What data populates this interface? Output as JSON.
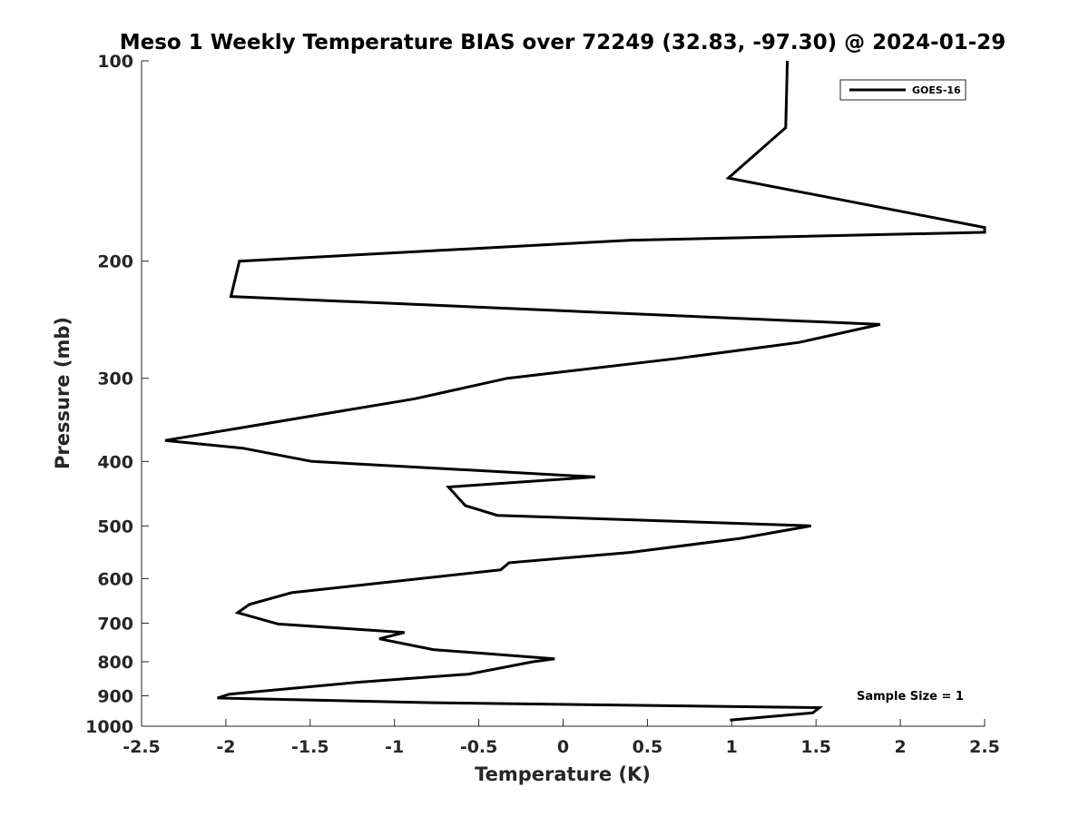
{
  "chart_data": {
    "type": "line",
    "title": "Meso 1 Weekly Temperature BIAS over 72249 (32.83, -97.30) @ 2024-01-29",
    "xlabel": "Temperature (K)",
    "ylabel": "Pressure (mb)",
    "xlim": [
      -2.5,
      2.5
    ],
    "ylim": [
      100,
      1000
    ],
    "y_scale": "log",
    "y_reversed": true,
    "x_ticks": [
      -2.5,
      -2,
      -1.5,
      -1,
      -0.5,
      0,
      0.5,
      1,
      1.5,
      2,
      2.5
    ],
    "x_tick_labels": [
      "-2.5",
      "-2",
      "-1.5",
      "-1",
      "-0.5",
      "0",
      "0.5",
      "1",
      "1.5",
      "2",
      "2.5"
    ],
    "y_ticks": [
      100,
      200,
      300,
      400,
      500,
      600,
      700,
      800,
      900,
      1000
    ],
    "y_tick_labels": [
      "100",
      "200",
      "300",
      "400",
      "500",
      "600",
      "700",
      "800",
      "900",
      "1000"
    ],
    "grid": false,
    "legend_position": "top-right",
    "annotation": "Sample Size = 1",
    "series": [
      {
        "name": "GOES-16",
        "color": "#000000",
        "x": [
          1.33,
          1.32,
          0.98,
          2.5,
          2.5,
          0.4,
          -1.92,
          -1.97,
          1.88,
          1.4,
          0.68,
          -0.33,
          -0.88,
          -2.36,
          -1.9,
          -1.49,
          0.19,
          -0.68,
          -0.58,
          -0.39,
          1.47,
          1.05,
          0.4,
          -0.32,
          -0.37,
          -1.61,
          -1.86,
          -1.93,
          -1.69,
          -0.94,
          -1.09,
          -0.77,
          -0.05,
          -0.18,
          -0.56,
          -1.22,
          -1.98,
          -2.05,
          -0.77,
          1.52,
          1.48,
          0.99
        ],
        "y": [
          100,
          126,
          150,
          178,
          181,
          186,
          200,
          226,
          249,
          265,
          280,
          300,
          322,
          372,
          382,
          400,
          422,
          437,
          466,
          482,
          500,
          522,
          548,
          568,
          582,
          630,
          656,
          675,
          702,
          723,
          739,
          767,
          792,
          800,
          835,
          859,
          895,
          907,
          922,
          938,
          955,
          979
        ]
      }
    ]
  }
}
